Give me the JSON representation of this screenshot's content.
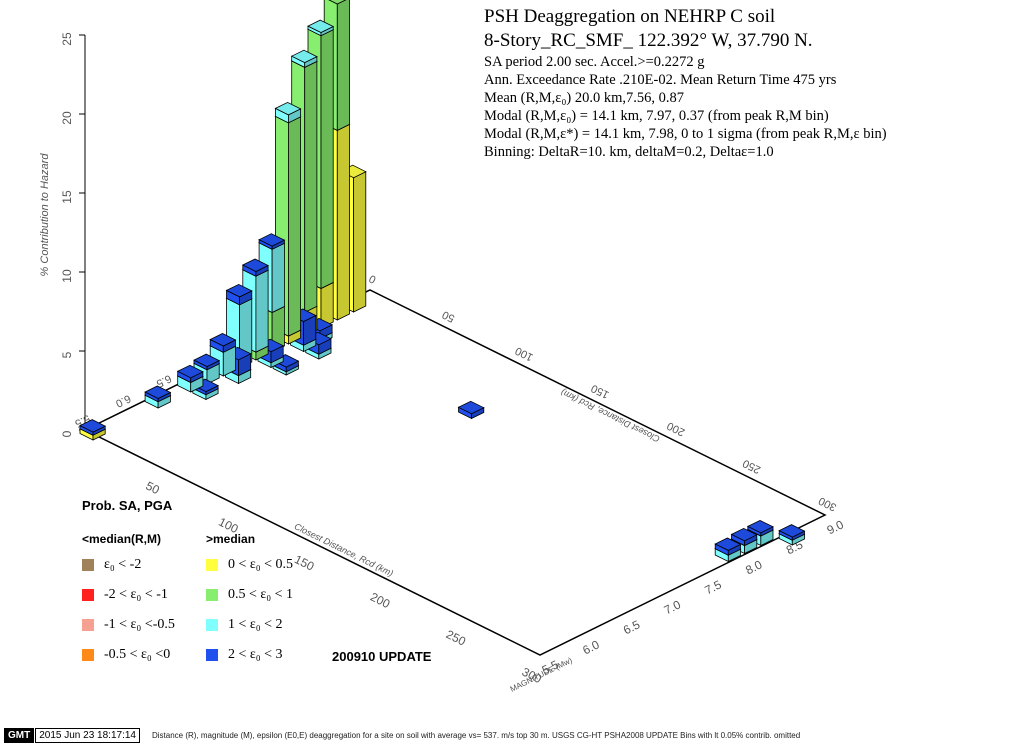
{
  "header": {
    "title": "PSH Deaggregation on NEHRP C  soil",
    "site": "8-Story_RC_SMF_ 122.392° W, 37.790 N.",
    "lines": [
      "SA period 2.00 sec. Accel.>=0.2272  g",
      "Ann. Exceedance Rate .210E-02. Mean Return Time 475    yrs",
      "Mean (R,M,ε₀)  20.0 km,7.56,  0.87",
      "Modal (R,M,ε₀) = 14.1 km, 7.97, 0.37 (from peak R,M bin)",
      "Modal (R,M,ε*) = 14.1 km, 7.98, 0 to 1 sigma  (from peak R,M,ε bin)",
      "Binning: DeltaR=10. km, deltaM=0.2, Deltaε=1.0"
    ]
  },
  "legend": {
    "title": "Prob. SA, PGA",
    "col_below": "<median(R,M)",
    "col_above": ">median",
    "below_items": [
      {
        "label": "ε₀ < -2",
        "color": "#a0825a"
      },
      {
        "label": "-2 < ε₀ < -1",
        "color": "#ff2020"
      },
      {
        "label": "-1 < ε₀ <-0.5",
        "color": "#f5a090"
      },
      {
        "label": "-0.5 < ε₀ <0",
        "color": "#ff8a1a"
      }
    ],
    "above_items": [
      {
        "label": "0 < ε₀ < 0.5",
        "color": "#ffff40"
      },
      {
        "label": "0.5 < ε₀ < 1",
        "color": "#88ee70"
      },
      {
        "label": "1 < ε₀ < 2",
        "color": "#80ffff"
      },
      {
        "label": "2 < ε₀ < 3",
        "color": "#2050ee"
      }
    ],
    "update": "200910 UPDATE"
  },
  "footer": {
    "logo": "GMT",
    "timestamp": "2015 Jun 23 18:17:14",
    "caption": "Distance (R), magnitude (M), epsilon (E0,E) deaggregation for a site on soil with average vs= 537. m/s top 30 m. USGS CG-HT PSHA2008 UPDATE    Bins with lt 0.05% contrib. omitted"
  },
  "chart_data": {
    "type": "bar",
    "zlabel": "% Contribution to Hazard",
    "xlabel": "Closest Distance, Rcd (km)",
    "ylabel": "MAGNITUDE (Mw)",
    "zlim": [
      0,
      25
    ],
    "zticks": [
      "0",
      "5",
      "10",
      "15",
      "20",
      "25"
    ],
    "dist_range": [
      0,
      300
    ],
    "mag_range": [
      5.5,
      9.0
    ],
    "dist_ticks_front": [
      "50",
      "100",
      "150",
      "200",
      "250",
      "300"
    ],
    "dist_ticks_back": [
      "0",
      "50",
      "100",
      "150",
      "200",
      "250",
      "300"
    ],
    "mag_ticks_front": [
      "5.5",
      "6.0",
      "6.5",
      "7.0",
      "7.5",
      "8.0",
      "8.5",
      "9.0"
    ],
    "mag_ticks_back": [
      "5.5",
      "6.0",
      "6.5",
      "7.0",
      "8.0"
    ],
    "epsilon_colors": {
      "0 < ε₀ < 0.5": "#ffff40",
      "0.5 < ε₀ < 1": "#88ee70",
      "1 < ε₀ < 2": "#80ffff",
      "2 < ε₀ < 3": "#2050ee"
    },
    "bars": [
      {
        "r": 5,
        "m": 5.5,
        "segments": [
          0.3,
          0,
          0,
          0.2
        ]
      },
      {
        "r": 5,
        "m": 6.3,
        "segments": [
          0,
          0,
          0.4,
          0.2
        ]
      },
      {
        "r": 5,
        "m": 6.7,
        "segments": [
          0,
          0,
          0.6,
          0.3
        ]
      },
      {
        "r": 5,
        "m": 6.9,
        "segments": [
          0,
          0,
          0.9,
          0.2
        ]
      },
      {
        "r": 5,
        "m": 7.1,
        "segments": [
          0,
          0,
          1.5,
          0.4
        ]
      },
      {
        "r": 5,
        "m": 7.3,
        "segments": [
          0,
          0,
          4.0,
          0.5
        ]
      },
      {
        "r": 5,
        "m": 7.5,
        "segments": [
          0,
          0.5,
          4.8,
          0.3
        ]
      },
      {
        "r": 5,
        "m": 7.7,
        "segments": [
          0,
          2.5,
          4.0,
          0.2
        ]
      },
      {
        "r": 5,
        "m": 7.9,
        "segments": [
          0.5,
          13.5,
          0.5,
          0
        ]
      },
      {
        "r": 5,
        "m": 8.1,
        "segments": [
          1.5,
          15.5,
          0.3,
          0
        ]
      },
      {
        "r": 5,
        "m": 8.3,
        "segments": [
          2.5,
          16.0,
          0.2,
          0
        ]
      },
      {
        "r": 5,
        "m": 8.5,
        "segments": [
          12.0,
          8.0,
          0,
          0
        ]
      },
      {
        "r": 5,
        "m": 8.7,
        "segments": [
          8.5,
          0,
          0,
          0
        ]
      },
      {
        "r": 15,
        "m": 6.7,
        "segments": [
          0,
          0,
          0.3,
          0.2
        ]
      },
      {
        "r": 15,
        "m": 7.1,
        "segments": [
          0,
          0,
          0.5,
          1.0
        ]
      },
      {
        "r": 15,
        "m": 7.5,
        "segments": [
          0,
          0,
          0.3,
          0.7
        ]
      },
      {
        "r": 15,
        "m": 7.9,
        "segments": [
          0,
          0,
          0.4,
          1.5
        ]
      },
      {
        "r": 15,
        "m": 8.1,
        "segments": [
          0,
          0,
          0.3,
          0.5
        ]
      },
      {
        "r": 25,
        "m": 7.5,
        "segments": [
          0,
          0,
          0.2,
          0.3
        ]
      },
      {
        "r": 25,
        "m": 7.9,
        "segments": [
          0,
          0,
          0.3,
          0.6
        ]
      },
      {
        "r": 115,
        "m": 8.1,
        "segments": [
          0,
          0,
          0,
          0.3
        ]
      },
      {
        "r": 295,
        "m": 7.9,
        "segments": [
          0,
          0,
          0.4,
          0.3
        ]
      },
      {
        "r": 295,
        "m": 8.1,
        "segments": [
          0,
          0,
          0.5,
          0.3
        ]
      },
      {
        "r": 295,
        "m": 8.3,
        "segments": [
          0,
          0,
          0.6,
          0.2
        ]
      },
      {
        "r": 305,
        "m": 8.5,
        "segments": [
          0,
          0,
          0.3,
          0.2
        ]
      }
    ]
  }
}
